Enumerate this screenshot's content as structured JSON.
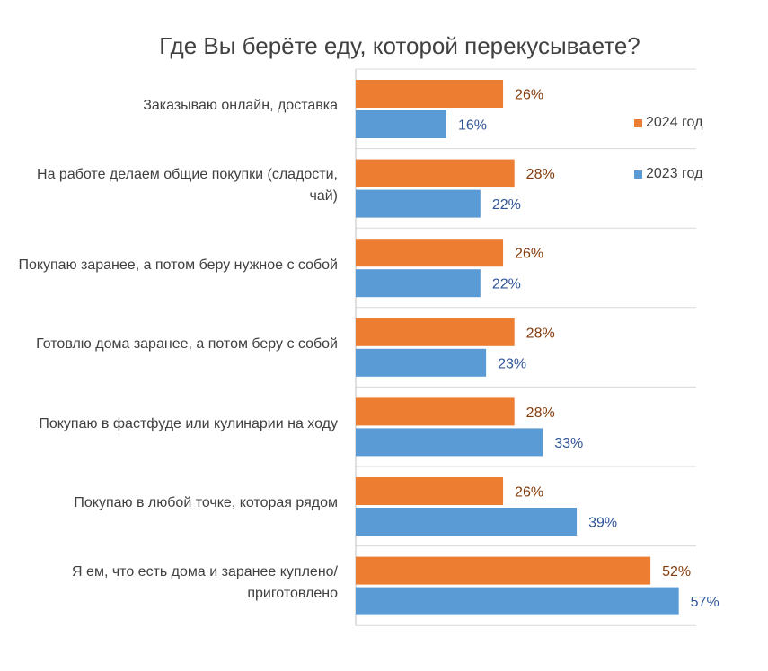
{
  "chart_data": {
    "type": "bar",
    "orientation": "horizontal",
    "title": "Где Вы берёте еду, которой перекусываете?",
    "xlabel": "",
    "ylabel": "",
    "xlim": [
      0,
      60
    ],
    "grid": "horizontal separators only",
    "legend_position": "right",
    "categories": [
      "Заказываю онлайн, доставка",
      "На работе делаем общие покупки (сладости, чай)",
      "Покупаю заранее, а потом беру нужное с собой",
      "Готовлю дома заранее, а потом беру с собой",
      "Покупаю в фастфуде или кулинарии на ходу",
      "Покупаю в любой точке, которая рядом",
      "Я ем, что есть дома и заранее куплено/приготовлено"
    ],
    "series": [
      {
        "name": "2024 год",
        "color": "#ED7D31",
        "label_color": "#843C0C",
        "values": [
          26,
          28,
          26,
          28,
          28,
          26,
          52
        ],
        "labels": [
          "26%",
          "28%",
          "26%",
          "28%",
          "28%",
          "26%",
          "52%"
        ]
      },
      {
        "name": "2023 год",
        "color": "#5B9BD5",
        "label_color": "#2F5597",
        "values": [
          16,
          22,
          22,
          23,
          33,
          39,
          57
        ],
        "labels": [
          "16%",
          "22%",
          "22%",
          "23%",
          "33%",
          "39%",
          "57%"
        ]
      }
    ]
  }
}
